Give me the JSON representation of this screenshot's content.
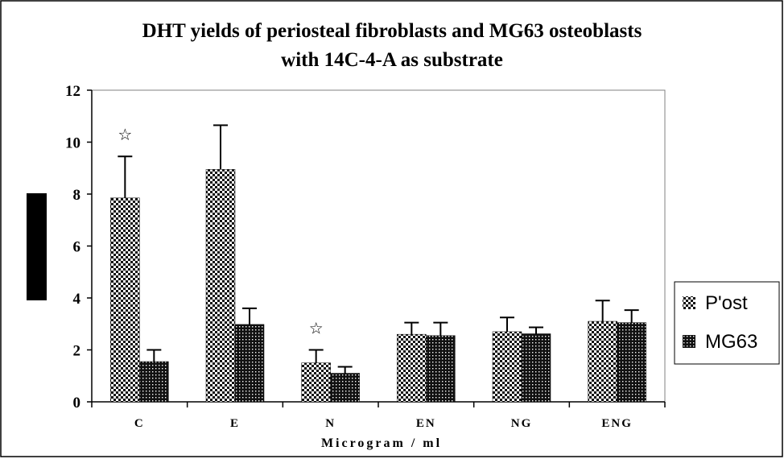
{
  "chart_data": {
    "type": "bar",
    "title": "DHT yields of periosteal fibroblasts and MG63 osteoblasts",
    "subtitle": "with 14C-4-A as substrate",
    "xlabel": "Microgram / ml",
    "ylabel": "",
    "ylim": [
      0,
      12
    ],
    "yticks": [
      0,
      2,
      4,
      6,
      8,
      10,
      12
    ],
    "categories": [
      "C",
      "E",
      "N",
      "EN",
      "NG",
      "ENG"
    ],
    "series": [
      {
        "name": "P'ost",
        "values": [
          7.85,
          8.95,
          1.5,
          2.6,
          2.7,
          3.1
        ],
        "errors": [
          1.6,
          1.7,
          0.5,
          0.45,
          0.55,
          0.8
        ],
        "pattern": "checker"
      },
      {
        "name": "MG63",
        "values": [
          1.55,
          2.98,
          1.1,
          2.55,
          2.62,
          3.05
        ],
        "errors": [
          0.45,
          0.62,
          0.25,
          0.5,
          0.25,
          0.48
        ],
        "pattern": "dots"
      }
    ],
    "annotations": [
      {
        "category": "C",
        "series": "P'ost",
        "symbol": "☆"
      },
      {
        "category": "N",
        "series": "P'ost",
        "symbol": "☆"
      }
    ],
    "legend_position": "right",
    "grid": false
  }
}
